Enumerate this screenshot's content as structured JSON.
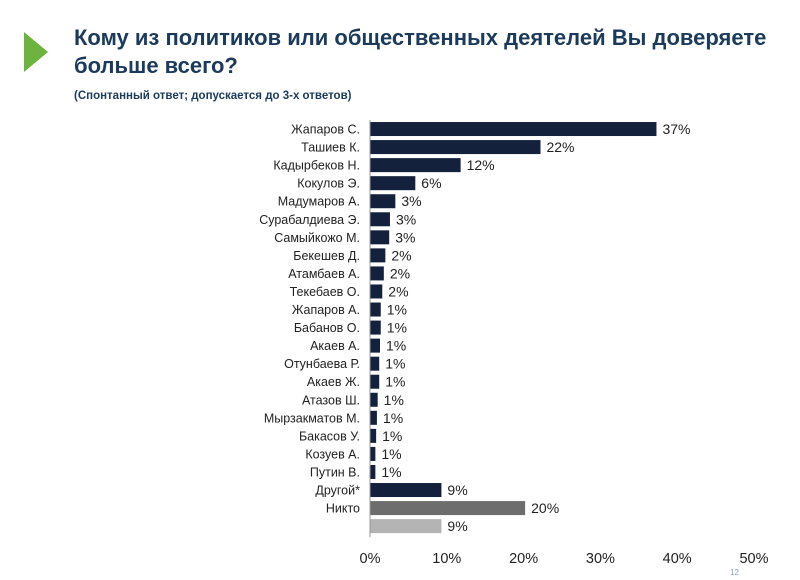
{
  "header": {
    "title": "Кому из политиков или общественных деятелей Вы доверяете больше всего?",
    "subtitle": "(Спонтанный ответ; допускается до 3-х ответов)",
    "slide_number": "12"
  },
  "colors": {
    "accent": "#6db33f",
    "title": "#1b3a5c",
    "bar_main": "#14213d",
    "bar_nobody": "#6d6d6d",
    "bar_unlabeled": "#b4b4b4"
  },
  "chart_data": {
    "type": "bar",
    "orientation": "horizontal",
    "categories": [
      "Жапаров С.",
      "Ташиев К.",
      "Кадырбеков Н.",
      "Кокулов Э.",
      "Мадумаров А.",
      "Сурабалдиева Э.",
      "Самыйкожо М.",
      "Бекешев Д.",
      "Атамбаев А.",
      "Текебаев О.",
      "Жапаров А.",
      "Бабанов О.",
      "Акаев А.",
      "Отунбаева Р.",
      "Акаев Ж.",
      "Атазов Ш.",
      "Мырзакматов М.",
      "Бакасов У.",
      "Козуев А.",
      "Путин В.",
      "Другой*",
      "Никто",
      ""
    ],
    "values": [
      37.3,
      22.2,
      11.8,
      5.9,
      3.3,
      2.6,
      2.5,
      2.0,
      1.8,
      1.6,
      1.4,
      1.4,
      1.3,
      1.2,
      1.2,
      1.0,
      0.9,
      0.8,
      0.7,
      0.7,
      9.3,
      20.2,
      9.3
    ],
    "value_labels": [
      "37%",
      "22%",
      "12%",
      "6%",
      "3%",
      "3%",
      "3%",
      "2%",
      "2%",
      "2%",
      "1%",
      "1%",
      "1%",
      "1%",
      "1%",
      "1%",
      "1%",
      "1%",
      "1%",
      "1%",
      "9%",
      "20%",
      "9%"
    ],
    "bar_color_keys": [
      "bar_main",
      "bar_main",
      "bar_main",
      "bar_main",
      "bar_main",
      "bar_main",
      "bar_main",
      "bar_main",
      "bar_main",
      "bar_main",
      "bar_main",
      "bar_main",
      "bar_main",
      "bar_main",
      "bar_main",
      "bar_main",
      "bar_main",
      "bar_main",
      "bar_main",
      "bar_main",
      "bar_main",
      "bar_nobody",
      "bar_unlabeled"
    ],
    "xlim": [
      0,
      50
    ],
    "xticks": [
      0,
      10,
      20,
      30,
      40,
      50
    ],
    "xtick_labels": [
      "0%",
      "10%",
      "20%",
      "30%",
      "40%",
      "50%"
    ],
    "grid": false,
    "legend": "none"
  }
}
